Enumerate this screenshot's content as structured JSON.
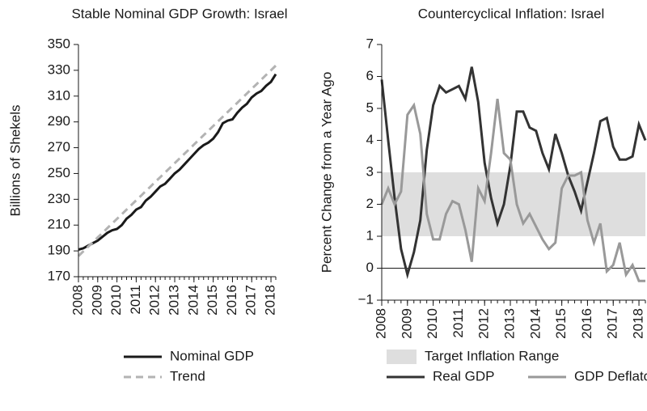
{
  "chart_data": [
    {
      "type": "line",
      "title": "Stable Nominal GDP Growth: Israel",
      "y_label": "Billions of Shekels",
      "x": [
        2008,
        2008.25,
        2008.5,
        2008.75,
        2009,
        2009.25,
        2009.5,
        2009.75,
        2010,
        2010.25,
        2010.5,
        2010.75,
        2011,
        2011.25,
        2011.5,
        2011.75,
        2012,
        2012.25,
        2012.5,
        2012.75,
        2013,
        2013.25,
        2013.5,
        2013.75,
        2014,
        2014.25,
        2014.5,
        2014.75,
        2015,
        2015.25,
        2015.5,
        2015.75,
        2016,
        2016.25,
        2016.5,
        2016.75,
        2017,
        2017.25,
        2017.5,
        2017.75,
        2018,
        2018.25
      ],
      "series": [
        {
          "name": "Nominal GDP",
          "color": "#1a1a1a",
          "dash": false,
          "values": [
            191,
            192,
            194,
            196,
            198,
            201,
            204,
            206,
            207,
            210,
            215,
            218,
            222,
            224,
            229,
            232,
            236,
            240,
            242,
            246,
            250,
            253,
            257,
            261,
            265,
            269,
            272,
            274,
            277,
            282,
            289,
            291,
            292,
            297,
            301,
            304,
            309,
            312,
            314,
            318,
            321,
            327
          ]
        },
        {
          "name": "Trend",
          "color": "#b3b3b3",
          "dash": true,
          "values": [
            186,
            189.6,
            193.2,
            196.8,
            200.4,
            204,
            207.6,
            211.2,
            214.8,
            218.4,
            222,
            225.6,
            229.2,
            232.8,
            236.4,
            240,
            243.6,
            247.2,
            250.8,
            254.4,
            258,
            261.6,
            265.2,
            268.8,
            272.4,
            276,
            279.6,
            283.2,
            286.8,
            290.4,
            294,
            297.6,
            301.2,
            304.8,
            308.4,
            312,
            315.6,
            319.2,
            322.8,
            326.4,
            330,
            333.6
          ]
        }
      ],
      "xlim": [
        2008,
        2018.25
      ],
      "xticks": [
        2008,
        2009,
        2010,
        2011,
        2012,
        2013,
        2014,
        2015,
        2016,
        2017,
        2018
      ],
      "ylim": [
        170,
        350
      ],
      "yticks": [
        170,
        190,
        210,
        230,
        250,
        270,
        290,
        310,
        330,
        350
      ]
    },
    {
      "type": "line",
      "title": "Countercyclical Inflation: Israel",
      "y_label": "Percent Change from a Year Ago",
      "x": [
        2008,
        2008.25,
        2008.5,
        2008.75,
        2009,
        2009.25,
        2009.5,
        2009.75,
        2010,
        2010.25,
        2010.5,
        2010.75,
        2011,
        2011.25,
        2011.5,
        2011.75,
        2012,
        2012.25,
        2012.5,
        2012.75,
        2013,
        2013.25,
        2013.5,
        2013.75,
        2014,
        2014.25,
        2014.5,
        2014.75,
        2015,
        2015.25,
        2015.5,
        2015.75,
        2016,
        2016.25,
        2016.5,
        2016.75,
        2017,
        2017.25,
        2017.5,
        2017.75,
        2018,
        2018.25
      ],
      "band": {
        "name": "Target Inflation Range",
        "color": "#dedede",
        "range": [
          1,
          3
        ]
      },
      "hline": 0,
      "series": [
        {
          "name": "Real GDP",
          "color": "#333333",
          "dash": false,
          "values": [
            5.9,
            4.0,
            2.2,
            0.6,
            -0.2,
            0.5,
            1.5,
            3.7,
            5.1,
            5.7,
            5.5,
            5.6,
            5.7,
            5.3,
            6.3,
            5.2,
            3.3,
            2.2,
            1.4,
            2.0,
            3.2,
            4.9,
            4.9,
            4.4,
            4.3,
            3.6,
            3.1,
            4.2,
            3.6,
            2.9,
            2.4,
            1.8,
            2.7,
            3.6,
            4.6,
            4.7,
            3.8,
            3.4,
            3.4,
            3.5,
            4.5,
            4.0
          ]
        },
        {
          "name": "GDP Deflator",
          "color": "#999999",
          "dash": false,
          "values": [
            2.0,
            2.5,
            2.0,
            2.4,
            4.8,
            5.1,
            4.2,
            1.7,
            0.9,
            0.9,
            1.7,
            2.1,
            2.0,
            1.2,
            0.2,
            2.5,
            2.1,
            3.6,
            5.3,
            3.6,
            3.4,
            2.0,
            1.4,
            1.7,
            1.3,
            0.9,
            0.6,
            0.8,
            2.5,
            2.9,
            2.9,
            3.0,
            1.5,
            0.8,
            1.4,
            -0.1,
            0.1,
            0.8,
            -0.2,
            0.1,
            -0.4,
            -0.4
          ]
        }
      ],
      "xlim": [
        2008,
        2018.25
      ],
      "xticks": [
        2008,
        2009,
        2010,
        2011,
        2012,
        2013,
        2014,
        2015,
        2016,
        2017,
        2018
      ],
      "ylim": [
        -1,
        7
      ],
      "yticks": [
        {
          "value": -1,
          "label": "−1"
        },
        0,
        1,
        2,
        3,
        4,
        5,
        6,
        7
      ]
    }
  ]
}
